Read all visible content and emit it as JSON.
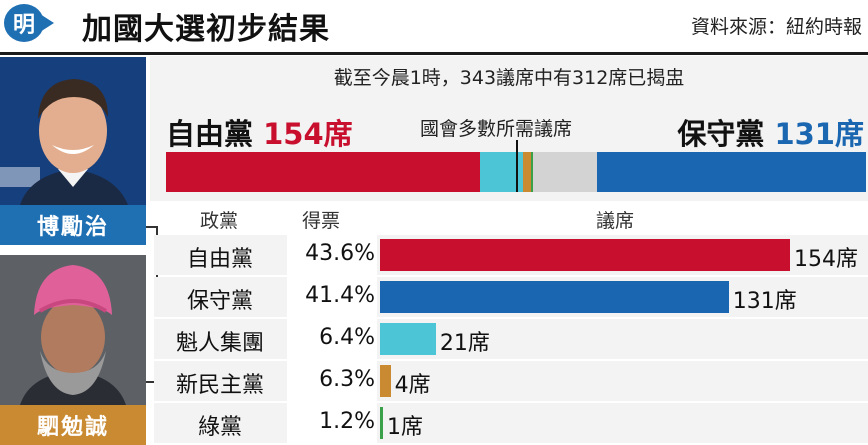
{
  "header": {
    "logo_char": "明",
    "title": "加國大選初步結果",
    "source": "資料來源：紐約時報"
  },
  "candidates": [
    {
      "name": "博勵治",
      "party": "保守黨",
      "color": "#1f6fb3"
    },
    {
      "name": "駟勉誠",
      "party": "新民主黨",
      "color": "#c98a32"
    }
  ],
  "summary": {
    "status": "截至今晨1時，343議席中有312席已揭盅",
    "majority_label": "國會多數所需議席",
    "left": {
      "party": "自由黨",
      "seats": "154席"
    },
    "right": {
      "party": "保守黨",
      "seats": "131席"
    }
  },
  "table": {
    "headers": {
      "party": "政黨",
      "votes": "得票",
      "seats": "議席"
    }
  },
  "chart_data": {
    "type": "bar",
    "title": "加國大選初步結果",
    "total_seats": 343,
    "declared_seats": 312,
    "majority_seats": 172,
    "categories": [
      "自由黨",
      "保守黨",
      "魁人集團",
      "新民主黨",
      "綠黨"
    ],
    "vote_share": [
      "43.6%",
      "41.4%",
      "6.4%",
      "6.3%",
      "1.2%"
    ],
    "values": [
      154,
      131,
      21,
      4,
      1
    ],
    "seat_labels": [
      "154席",
      "131席",
      "21席",
      "4席",
      "1席"
    ],
    "colors": [
      "#c8102e",
      "#1a66b0",
      "#4cc6d6",
      "#c98a32",
      "#3aa14a"
    ],
    "undeclared_color": "#d3d3d3"
  }
}
